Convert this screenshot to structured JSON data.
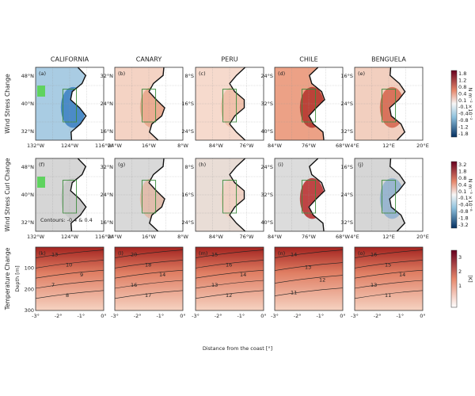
{
  "columns": [
    "CALIFORNIA",
    "CANARY",
    "PERU",
    "CHILE",
    "BENGUELA"
  ],
  "row_labels": [
    "Wind Stress Change",
    "Wind Stress Curl Change",
    "Temperature Change"
  ],
  "panels": [
    {
      "label": "(a)",
      "x_ticks": [
        "132°W",
        "124°W",
        "116°W"
      ],
      "y_ticks": [
        "48°N",
        "40°N",
        "32°N"
      ]
    },
    {
      "label": "(b)",
      "x_ticks": [
        "24°W",
        "16°W",
        "8°W"
      ],
      "y_ticks": [
        "32°N",
        "24°N",
        "16°N"
      ]
    },
    {
      "label": "(c)",
      "x_ticks": [
        "84°W",
        "76°W"
      ],
      "y_ticks": [
        "8°S",
        "16°S",
        "24°S"
      ]
    },
    {
      "label": "(d)",
      "x_ticks": [
        "84°W",
        "76°W",
        "68°W"
      ],
      "y_ticks": [
        "24°S",
        "32°S",
        "40°S"
      ]
    },
    {
      "label": "(e)",
      "x_ticks": [
        "4°E",
        "12°E",
        "20°E"
      ],
      "y_ticks": [
        "16°S",
        "24°S",
        "32°S"
      ]
    },
    {
      "label": "(f)",
      "x_ticks": [
        "132°W",
        "124°W",
        "116°W"
      ],
      "y_ticks": [
        "48°N",
        "40°N",
        "32°N"
      ]
    },
    {
      "label": "(g)",
      "x_ticks": [
        "24°W",
        "16°W",
        "8°W"
      ],
      "y_ticks": [
        "32°N",
        "24°N",
        "16°N"
      ]
    },
    {
      "label": "(h)",
      "x_ticks": [
        "84°W",
        "76°W"
      ],
      "y_ticks": [
        "8°S",
        "16°S",
        "24°S"
      ]
    },
    {
      "label": "(i)",
      "x_ticks": [
        "84°W",
        "76°W",
        "68°W"
      ],
      "y_ticks": [
        "24°S",
        "32°S",
        "40°S"
      ]
    },
    {
      "label": "(j)",
      "x_ticks": [
        "4°E",
        "12°E",
        "20°E"
      ],
      "y_ticks": [
        "16°S",
        "24°S",
        "32°S"
      ]
    },
    {
      "label": "(k)",
      "x_ticks": [
        "-3°",
        "-2°",
        "-1°",
        "0°"
      ],
      "y_ticks": [
        "100",
        "200",
        "300"
      ],
      "contour_labels": [
        "13",
        "10",
        "9",
        "7",
        "8"
      ]
    },
    {
      "label": "(l)",
      "x_ticks": [
        "-3°",
        "-2°",
        "-1°",
        "0°"
      ],
      "y_ticks": [],
      "contour_labels": [
        "20",
        "18",
        "14",
        "16",
        "17"
      ]
    },
    {
      "label": "(m)",
      "x_ticks": [
        "-3°",
        "-2°",
        "-1°",
        "0°"
      ],
      "y_ticks": [],
      "contour_labels": [
        "15",
        "16",
        "14",
        "13",
        "12"
      ]
    },
    {
      "label": "(n)",
      "x_ticks": [
        "-3°",
        "-2°",
        "-1°",
        "0°"
      ],
      "y_ticks": [],
      "contour_labels": [
        "14",
        "13",
        "12",
        "11"
      ]
    },
    {
      "label": "(o)",
      "x_ticks": [
        "-3°",
        "-2°",
        "-1°",
        "0°"
      ],
      "y_ticks": [],
      "contour_labels": [
        "16",
        "15",
        "14",
        "13",
        "11"
      ]
    }
  ],
  "annotation": "Contours: -0.4 & 0.4",
  "x_axis_title": "Distance from the coast [°]",
  "y_axis_title": "Depth [m]",
  "colorbars": [
    {
      "unit": "N m⁻² ×10⁻²",
      "ticks": [
        "1.8",
        "1.2",
        "0.8",
        "0.4",
        "0.1",
        "-0.1",
        "-0.4",
        "-0.8",
        "-1.2",
        "-1.8"
      ]
    },
    {
      "unit": "N m⁻³ ×10⁻⁸",
      "ticks": [
        "3.2",
        "1.8",
        "0.8",
        "0.4",
        "0.1",
        "-0.1",
        "-0.4",
        "-0.8",
        "-1.8",
        "-3.2"
      ]
    },
    {
      "unit": "[K]",
      "ticks": [
        "3",
        "2",
        "1"
      ]
    }
  ]
}
